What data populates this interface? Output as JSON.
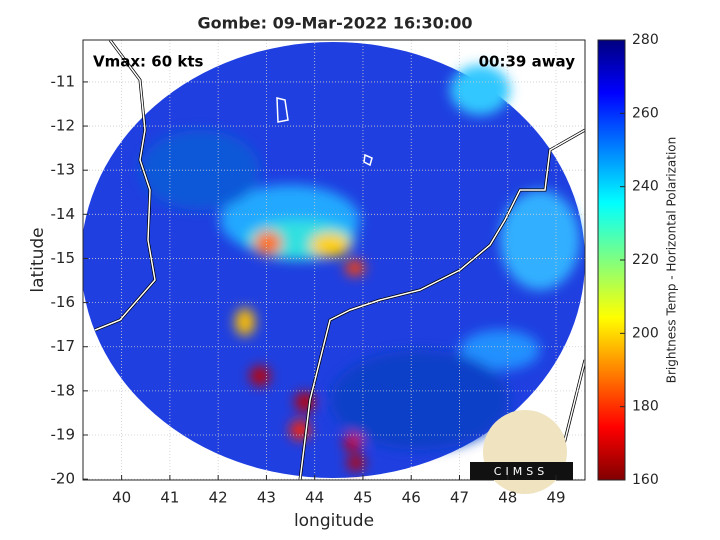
{
  "chart_data": {
    "type": "image",
    "title": "Gombe: 09-Mar-2022 16:30:00",
    "xlabel": "longitude",
    "ylabel": "latitude",
    "xlim": [
      39.2,
      49.6
    ],
    "xticks": [
      40,
      41,
      42,
      43,
      44,
      45,
      46,
      47,
      48,
      49
    ],
    "ylim": [
      -20.02,
      -10.05
    ],
    "yticks": [
      -20,
      -19,
      -18,
      -17,
      -16,
      -15,
      -14,
      -13,
      -12,
      -11
    ],
    "grid": true,
    "annotations": [
      "Vmax: 60 kts",
      "00:39 away"
    ],
    "colorbar": {
      "label": "Brightness Temp - Horizontal Polarization",
      "lim": [
        160,
        280
      ],
      "ticks": [
        160,
        180,
        200,
        220,
        240,
        260,
        280
      ]
    },
    "logo": "CIMSS"
  }
}
